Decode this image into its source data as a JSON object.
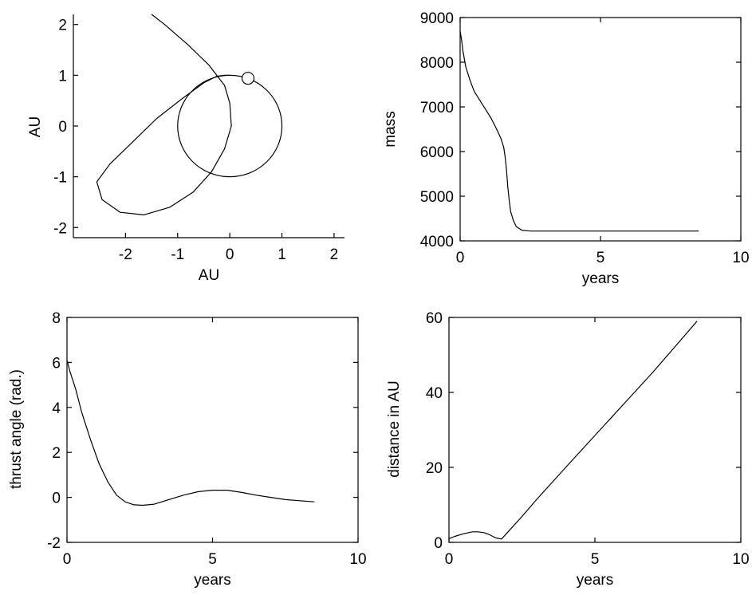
{
  "chart_data": [
    {
      "id": "orbit",
      "type": "line",
      "xlabel": "AU",
      "ylabel": "AU",
      "xlim": [
        -3,
        2.2
      ],
      "ylim": [
        -2.2,
        2.2
      ],
      "xticks": [
        -2,
        -1,
        0,
        1,
        2
      ],
      "yticks": [
        -2,
        -1,
        0,
        1,
        2
      ],
      "tick_labels_x": [
        "-2",
        "-1",
        "0",
        "1",
        "2"
      ],
      "tick_labels_y": [
        "-2",
        "-1",
        "0",
        "1",
        "2"
      ],
      "frame": "L",
      "circle_orbit": {
        "center": [
          0,
          0
        ],
        "radius": 1
      },
      "marker": {
        "x": 0.35,
        "y": 0.94,
        "shape": "open-circle"
      },
      "trajectory": {
        "x": [
          0.0,
          -0.1,
          -0.25,
          -0.5,
          -0.9,
          -1.4,
          -1.9,
          -2.3,
          -2.55,
          -2.45,
          -2.1,
          -1.65,
          -1.15,
          -0.7,
          -0.35,
          -0.1,
          0.03,
          0.0,
          -0.1,
          -0.4,
          -0.8,
          -1.25,
          -1.5
        ],
        "y": [
          1.0,
          1.0,
          0.98,
          0.85,
          0.55,
          0.15,
          -0.35,
          -0.75,
          -1.1,
          -1.45,
          -1.7,
          -1.75,
          -1.6,
          -1.3,
          -0.9,
          -0.45,
          0.0,
          0.45,
          0.8,
          1.2,
          1.6,
          2.0,
          2.2
        ]
      }
    },
    {
      "id": "mass",
      "type": "line",
      "xlabel": "years",
      "ylabel": "mass",
      "xlim": [
        0,
        10
      ],
      "ylim": [
        4000,
        9000
      ],
      "xticks": [
        0,
        5,
        10
      ],
      "yticks": [
        4000,
        5000,
        6000,
        7000,
        8000,
        9000
      ],
      "tick_labels_x": [
        "0",
        "5",
        "10"
      ],
      "tick_labels_y": [
        "4000",
        "5000",
        "6000",
        "7000",
        "8000",
        "9000"
      ],
      "frame": "box",
      "series": [
        {
          "x": [
            0.0,
            0.05,
            0.1,
            0.2,
            0.35,
            0.5,
            0.7,
            0.9,
            1.1,
            1.3,
            1.45,
            1.55,
            1.6,
            1.65,
            1.7,
            1.75,
            1.8,
            1.9,
            2.0,
            2.2,
            2.5,
            8.5
          ],
          "y": [
            8700,
            8500,
            8250,
            7900,
            7600,
            7350,
            7150,
            6950,
            6750,
            6500,
            6300,
            6100,
            5900,
            5600,
            5200,
            4900,
            4650,
            4450,
            4320,
            4240,
            4220,
            4220
          ]
        }
      ]
    },
    {
      "id": "thrust",
      "type": "line",
      "xlabel": "years",
      "ylabel": "thrust angle (rad.)",
      "xlim": [
        0,
        10
      ],
      "ylim": [
        -2,
        8
      ],
      "xticks": [
        0,
        5,
        10
      ],
      "yticks": [
        -2,
        0,
        2,
        4,
        6,
        8
      ],
      "tick_labels_x": [
        "0",
        "5",
        "10"
      ],
      "tick_labels_y": [
        "-2",
        "0",
        "2",
        "4",
        "6",
        "8"
      ],
      "frame": "box",
      "series": [
        {
          "x": [
            0.0,
            0.1,
            0.3,
            0.5,
            0.8,
            1.1,
            1.4,
            1.7,
            2.0,
            2.3,
            2.6,
            3.0,
            3.5,
            4.0,
            4.5,
            5.0,
            5.5,
            6.0,
            6.5,
            7.0,
            7.5,
            8.0,
            8.5
          ],
          "y": [
            6.1,
            5.6,
            4.8,
            3.8,
            2.6,
            1.5,
            0.7,
            0.1,
            -0.2,
            -0.33,
            -0.35,
            -0.3,
            -0.1,
            0.1,
            0.25,
            0.32,
            0.32,
            0.22,
            0.1,
            0.0,
            -0.1,
            -0.15,
            -0.2
          ]
        }
      ]
    },
    {
      "id": "distance",
      "type": "line",
      "xlabel": "years",
      "ylabel": "distance in AU",
      "xlim": [
        0,
        10
      ],
      "ylim": [
        0,
        60
      ],
      "xticks": [
        0,
        5,
        10
      ],
      "yticks": [
        0,
        20,
        40,
        60
      ],
      "tick_labels_x": [
        "0",
        "5",
        "10"
      ],
      "tick_labels_y": [
        "0",
        "20",
        "40",
        "60"
      ],
      "frame": "box",
      "series": [
        {
          "x": [
            0.0,
            0.2,
            0.5,
            0.8,
            1.0,
            1.2,
            1.4,
            1.6,
            1.8,
            2.0,
            2.5,
            3.0,
            4.0,
            5.0,
            6.0,
            7.0,
            8.0,
            8.5
          ],
          "y": [
            1.0,
            1.6,
            2.3,
            2.8,
            2.8,
            2.6,
            2.0,
            1.2,
            0.9,
            2.6,
            6.9,
            11.4,
            20.0,
            28.5,
            37.0,
            45.5,
            54.5,
            59.0
          ]
        }
      ]
    }
  ]
}
